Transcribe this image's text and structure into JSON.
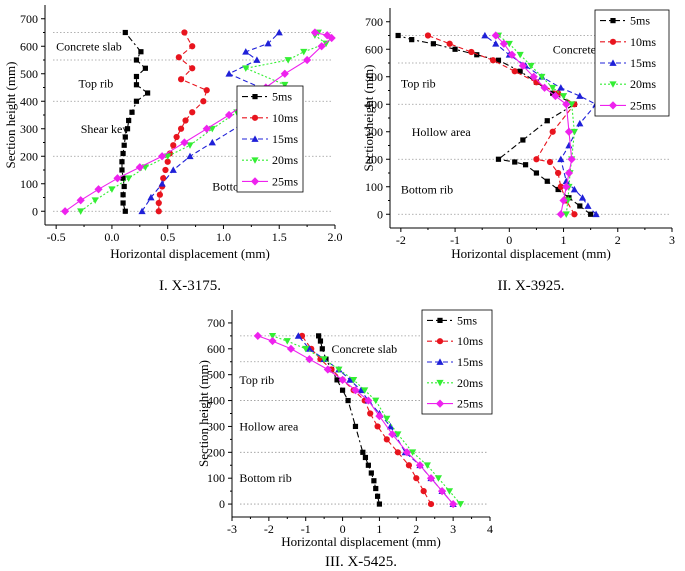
{
  "chart_data": [
    {
      "type": "line",
      "caption": "I. X-3175.",
      "xlabel": "Horizontal displacement (mm)",
      "ylabel": "Section height (mm)",
      "xlim": [
        -0.6,
        2.0
      ],
      "ylim": [
        -50,
        750
      ],
      "xticks": [
        -0.5,
        0.0,
        0.5,
        1.0,
        1.5,
        2.0
      ],
      "xtick_labels": [
        "-0.5",
        "0.0",
        "0.5",
        "1.0",
        "1.5",
        "2.0"
      ],
      "yticks": [
        0,
        100,
        200,
        300,
        400,
        500,
        600,
        700
      ],
      "ytick_labels": [
        "0",
        "100",
        "200",
        "300",
        "400",
        "500",
        "600",
        "700"
      ],
      "reference_lines": [
        650,
        550,
        400,
        200,
        0
      ],
      "region_labels": [
        {
          "text": "Concrete slab",
          "x": -0.5,
          "y": 600
        },
        {
          "text": "Top rib",
          "x": -0.3,
          "y": 465
        },
        {
          "text": "Shear key",
          "x": -0.28,
          "y": 300
        },
        {
          "text": "Bottom rib",
          "x": 0.9,
          "y": 90
        }
      ],
      "legend": "center-right",
      "series": [
        {
          "name": "5ms",
          "style": "5ms",
          "x": [
            0.12,
            0.1,
            0.1,
            0.11,
            0.1,
            0.09,
            0.09,
            0.1,
            0.11,
            0.12,
            0.14,
            0.15,
            0.18,
            0.22,
            0.32,
            0.22,
            0.22,
            0.3,
            0.22,
            0.26,
            0.12
          ],
          "y": [
            0,
            30,
            60,
            90,
            120,
            150,
            180,
            210,
            240,
            270,
            300,
            330,
            360,
            400,
            430,
            460,
            490,
            520,
            550,
            580,
            650
          ]
        },
        {
          "name": "10ms",
          "style": "10ms",
          "x": [
            0.42,
            0.42,
            0.43,
            0.45,
            0.46,
            0.48,
            0.5,
            0.52,
            0.55,
            0.58,
            0.62,
            0.66,
            0.72,
            0.82,
            0.85,
            0.62,
            0.72,
            0.6,
            0.72,
            0.65
          ],
          "y": [
            0,
            30,
            60,
            90,
            120,
            150,
            180,
            210,
            240,
            270,
            300,
            330,
            360,
            400,
            440,
            480,
            520,
            560,
            600,
            650
          ]
        },
        {
          "name": "15ms",
          "style": "15ms",
          "x": [
            0.27,
            0.35,
            0.45,
            0.55,
            0.7,
            0.9,
            1.3,
            1.5,
            1.05,
            1.3,
            1.2,
            1.4,
            1.5
          ],
          "y": [
            0,
            50,
            100,
            150,
            200,
            250,
            350,
            420,
            500,
            550,
            580,
            610,
            650
          ]
        },
        {
          "name": "20ms",
          "style": "20ms",
          "x": [
            -0.28,
            -0.15,
            0.0,
            0.15,
            0.3,
            0.5,
            0.7,
            0.9,
            1.12,
            1.33,
            1.55,
            1.2,
            1.58,
            1.72,
            1.92,
            1.82,
            1.85
          ],
          "y": [
            0,
            40,
            80,
            120,
            160,
            200,
            240,
            300,
            360,
            410,
            460,
            520,
            550,
            580,
            610,
            640,
            650
          ]
        },
        {
          "name": "25ms",
          "style": "25ms",
          "x": [
            -0.42,
            -0.28,
            -0.12,
            0.05,
            0.25,
            0.45,
            0.65,
            0.85,
            1.05,
            1.22,
            1.38,
            1.55,
            1.75,
            1.88,
            1.97,
            1.93,
            1.82
          ],
          "y": [
            0,
            40,
            80,
            120,
            160,
            200,
            250,
            300,
            350,
            400,
            450,
            500,
            550,
            600,
            630,
            640,
            650
          ]
        }
      ]
    },
    {
      "type": "line",
      "caption": "II. X-3925.",
      "xlabel": "Horizontal displacement (mm)",
      "ylabel": "Section height (mm)",
      "xlim": [
        -2.2,
        3.0
      ],
      "ylim": [
        -50,
        750
      ],
      "xticks": [
        -2,
        -1,
        0,
        1,
        2,
        3
      ],
      "xtick_labels": [
        "-2",
        "-1",
        "0",
        "1",
        "2",
        "3"
      ],
      "yticks": [
        0,
        100,
        200,
        300,
        400,
        500,
        600,
        700
      ],
      "ytick_labels": [
        "0",
        "100",
        "200",
        "300",
        "400",
        "500",
        "600",
        "700"
      ],
      "reference_lines": [
        650,
        550,
        400,
        200,
        0
      ],
      "region_labels": [
        {
          "text": "Concrete slab",
          "x": 0.8,
          "y": 600
        },
        {
          "text": "Top rib",
          "x": -2.0,
          "y": 475
        },
        {
          "text": "Hollow area",
          "x": -1.8,
          "y": 300
        },
        {
          "text": "Bottom rib",
          "x": -2.0,
          "y": 90
        }
      ],
      "legend": "top-right",
      "series": [
        {
          "name": "5ms",
          "style": "5ms",
          "x": [
            1.5,
            1.3,
            1.1,
            0.9,
            0.7,
            0.5,
            0.3,
            0.1,
            -0.2,
            0.25,
            0.7,
            1.2,
            0.8,
            0.5,
            0.2,
            -0.2,
            -0.6,
            -1.0,
            -1.4,
            -1.8,
            -2.05
          ],
          "y": [
            0,
            30,
            60,
            90,
            120,
            150,
            180,
            190,
            200,
            270,
            340,
            400,
            440,
            480,
            520,
            560,
            580,
            600,
            620,
            635,
            650
          ]
        },
        {
          "name": "10ms",
          "style": "10ms",
          "x": [
            1.2,
            1.05,
            0.95,
            0.9,
            0.75,
            0.5,
            0.8,
            1.2,
            0.9,
            0.5,
            0.1,
            -0.3,
            -0.7,
            -1.1,
            -1.5
          ],
          "y": [
            0,
            50,
            100,
            150,
            190,
            200,
            300,
            400,
            440,
            480,
            520,
            560,
            590,
            620,
            650
          ]
        },
        {
          "name": "15ms",
          "style": "15ms",
          "x": [
            1.6,
            1.45,
            1.35,
            1.2,
            1.05,
            0.95,
            1.1,
            1.3,
            1.6,
            1.3,
            0.95,
            0.6,
            0.3,
            0.0,
            -0.25,
            -0.45
          ],
          "y": [
            0,
            30,
            60,
            90,
            120,
            200,
            250,
            330,
            400,
            430,
            460,
            500,
            540,
            580,
            620,
            650
          ]
        },
        {
          "name": "20ms",
          "style": "20ms",
          "x": [
            1.05,
            1.08,
            1.1,
            1.12,
            1.15,
            1.2,
            1.15,
            1.0,
            0.8,
            0.6,
            0.4,
            0.2,
            0.0,
            -0.2
          ],
          "y": [
            0,
            50,
            100,
            150,
            200,
            300,
            400,
            430,
            460,
            500,
            540,
            580,
            620,
            650
          ]
        },
        {
          "name": "25ms",
          "style": "25ms",
          "x": [
            0.95,
            1.0,
            1.05,
            1.1,
            1.15,
            1.1,
            1.05,
            0.85,
            0.65,
            0.45,
            0.25,
            0.05,
            -0.1,
            -0.25
          ],
          "y": [
            0,
            50,
            100,
            150,
            200,
            300,
            400,
            430,
            460,
            500,
            540,
            580,
            620,
            650
          ]
        }
      ]
    },
    {
      "type": "line",
      "caption": "III. X-5425.",
      "xlabel": "Horizontal displacement (mm)",
      "ylabel": "Section height (mm)",
      "xlim": [
        -3.0,
        4.0
      ],
      "ylim": [
        -50,
        750
      ],
      "xticks": [
        -3,
        -2,
        -1,
        0,
        1,
        2,
        3,
        4
      ],
      "xtick_labels": [
        "-3",
        "-2",
        "-1",
        "0",
        "1",
        "2",
        "3",
        "4"
      ],
      "yticks": [
        0,
        100,
        200,
        300,
        400,
        500,
        600,
        700
      ],
      "ytick_labels": [
        "0",
        "100",
        "200",
        "300",
        "400",
        "500",
        "600",
        "700"
      ],
      "reference_lines": [
        650,
        550,
        400,
        200,
        0
      ],
      "region_labels": [
        {
          "text": "Concrete slab",
          "x": -0.3,
          "y": 600
        },
        {
          "text": "Top rib",
          "x": -2.8,
          "y": 480
        },
        {
          "text": "Hollow area",
          "x": -2.8,
          "y": 300
        },
        {
          "text": "Bottom rib",
          "x": -2.8,
          "y": 100
        }
      ],
      "legend": "top-right",
      "series": [
        {
          "name": "5ms",
          "style": "5ms",
          "x": [
            1.0,
            0.95,
            0.9,
            0.85,
            0.78,
            0.7,
            0.62,
            0.55,
            0.35,
            0.15,
            0.0,
            -0.15,
            -0.3,
            -0.45,
            -0.55,
            -0.6,
            -0.65
          ],
          "y": [
            0,
            30,
            60,
            90,
            120,
            150,
            180,
            200,
            300,
            400,
            440,
            480,
            520,
            560,
            600,
            630,
            650
          ]
        },
        {
          "name": "10ms",
          "style": "10ms",
          "x": [
            2.4,
            2.2,
            2.0,
            1.8,
            1.5,
            1.2,
            0.95,
            0.75,
            0.6,
            0.3,
            0.0,
            -0.3,
            -0.6,
            -0.85,
            -1.1
          ],
          "y": [
            0,
            50,
            100,
            150,
            200,
            250,
            300,
            350,
            400,
            440,
            480,
            520,
            560,
            600,
            650
          ]
        },
        {
          "name": "15ms",
          "style": "15ms",
          "x": [
            3.0,
            2.7,
            2.4,
            2.1,
            1.7,
            1.3,
            1.0,
            0.7,
            0.5,
            0.2,
            -0.1,
            -0.5,
            -0.9,
            -1.2
          ],
          "y": [
            0,
            50,
            100,
            150,
            200,
            300,
            350,
            400,
            440,
            480,
            520,
            560,
            600,
            650
          ]
        },
        {
          "name": "20ms",
          "style": "20ms",
          "x": [
            3.2,
            2.9,
            2.6,
            2.3,
            1.9,
            1.5,
            1.2,
            0.9,
            0.6,
            0.3,
            -0.1,
            -0.5,
            -1.0,
            -1.5,
            -1.9
          ],
          "y": [
            0,
            50,
            100,
            150,
            200,
            270,
            330,
            400,
            440,
            480,
            520,
            560,
            600,
            630,
            650
          ]
        },
        {
          "name": "25ms",
          "style": "25ms",
          "x": [
            3.0,
            2.7,
            2.4,
            2.1,
            1.75,
            1.35,
            1.0,
            0.7,
            0.35,
            0.0,
            -0.4,
            -0.9,
            -1.4,
            -1.9,
            -2.3
          ],
          "y": [
            0,
            50,
            100,
            150,
            200,
            270,
            340,
            400,
            440,
            480,
            520,
            560,
            600,
            630,
            650
          ]
        }
      ]
    }
  ],
  "series_styles": {
    "5ms": {
      "color": "#000000",
      "marker": "square",
      "dash": "6 3 2 3"
    },
    "10ms": {
      "color": "#e8141e",
      "marker": "circle",
      "dash": "5 3"
    },
    "15ms": {
      "color": "#1f20d8",
      "marker": "triangle",
      "dash": "5 3"
    },
    "20ms": {
      "color": "#33ee33",
      "marker": "tri-down",
      "dash": "2 2"
    },
    "25ms": {
      "color": "#ee22ee",
      "marker": "diamond",
      "dash": ""
    }
  }
}
